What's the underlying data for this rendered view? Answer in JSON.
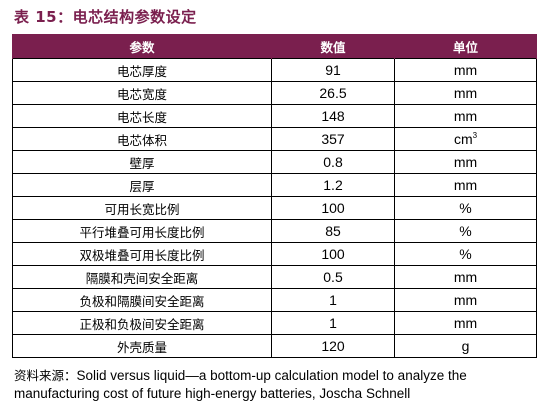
{
  "title": "表 15：电芯结构参数设定",
  "table": {
    "headers": [
      "参数",
      "数值",
      "单位"
    ],
    "rows": [
      {
        "param": "电芯厚度",
        "value": "91",
        "unit": "mm",
        "unit_sup": ""
      },
      {
        "param": "电芯宽度",
        "value": "26.5",
        "unit": "mm",
        "unit_sup": ""
      },
      {
        "param": "电芯长度",
        "value": "148",
        "unit": "mm",
        "unit_sup": ""
      },
      {
        "param": "电芯体积",
        "value": "357",
        "unit": "cm",
        "unit_sup": "3"
      },
      {
        "param": "壁厚",
        "value": "0.8",
        "unit": "mm",
        "unit_sup": ""
      },
      {
        "param": "层厚",
        "value": "1.2",
        "unit": "mm",
        "unit_sup": ""
      },
      {
        "param": "可用长宽比例",
        "value": "100",
        "unit": "%",
        "unit_sup": ""
      },
      {
        "param": "平行堆叠可用长度比例",
        "value": "85",
        "unit": "%",
        "unit_sup": ""
      },
      {
        "param": "双极堆叠可用长度比例",
        "value": "100",
        "unit": "%",
        "unit_sup": ""
      },
      {
        "param": "隔膜和壳间安全距离",
        "value": "0.5",
        "unit": "mm",
        "unit_sup": ""
      },
      {
        "param": "负极和隔膜间安全距离",
        "value": "1",
        "unit": "mm",
        "unit_sup": ""
      },
      {
        "param": "正极和负极间安全距离",
        "value": "1",
        "unit": "mm",
        "unit_sup": ""
      },
      {
        "param": "外壳质量",
        "value": "120",
        "unit": "g",
        "unit_sup": ""
      }
    ]
  },
  "source": {
    "label": "资料来源：",
    "text": "Solid versus liquid—a bottom-up calculation model to analyze the manufacturing cost of future high-energy batteries, Joscha Schnell"
  }
}
